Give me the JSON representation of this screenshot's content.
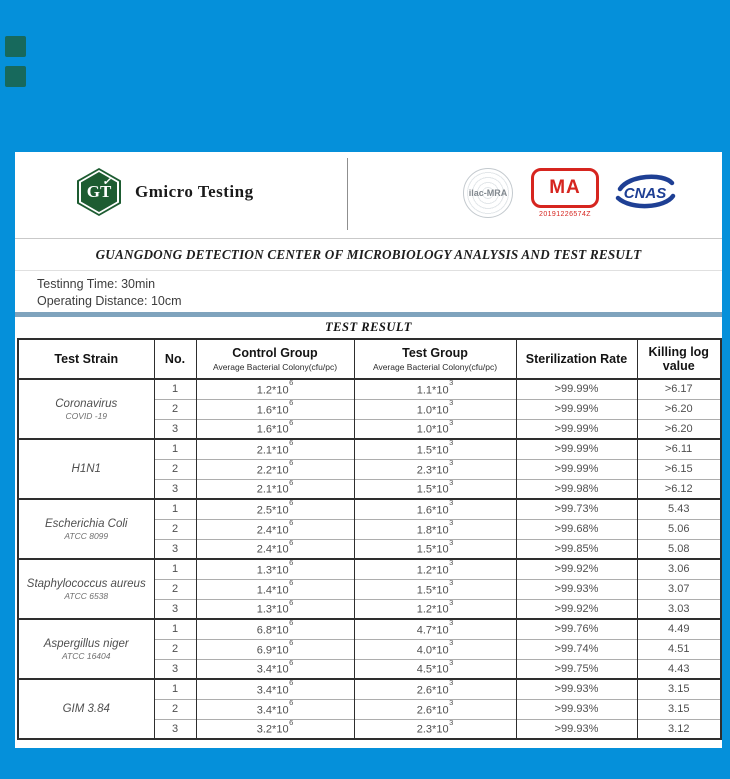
{
  "colors": {
    "background_blue": "#0590da",
    "logo_green": "#1d5c31",
    "cma_red": "#d6251f",
    "cnas_navy": "#1e3f94",
    "floating_square_teal": "#17695c"
  },
  "header": {
    "logo_text": "GT",
    "company_name": "Gmicro Testing",
    "marks": {
      "ilac_label": "ilac-MRA",
      "cma_label": "MA",
      "cma_number": "20191226574Z",
      "cnas_label": "CNAS"
    }
  },
  "title": "GUANGDONG DETECTION CENTER OF MICROBIOLOGY ANALYSIS AND TEST RESULT",
  "info": {
    "testing_time": "Testinng Time: 30min",
    "operating_distance": "Operating Distance: 10cm"
  },
  "table": {
    "caption": "TEST RESULT",
    "columns": [
      "Test Strain",
      "No.",
      "Control Group",
      "Test Group",
      "Sterilization Rate",
      "Killing log value"
    ],
    "subheader": "Average Bacterial Colony(cfu/pc)",
    "groups": [
      {
        "strain": "Coronavirus",
        "strain_sub": "COVID -19",
        "rows": [
          {
            "no": "1",
            "control": "1.2*10^6",
            "test": "1.1*10^3",
            "rate": ">99.99%",
            "log": ">6.17"
          },
          {
            "no": "2",
            "control": "1.6*10^6",
            "test": "1.0*10^3",
            "rate": ">99.99%",
            "log": ">6.20"
          },
          {
            "no": "3",
            "control": "1.6*10^6",
            "test": "1.0*10^3",
            "rate": ">99.99%",
            "log": ">6.20"
          }
        ]
      },
      {
        "strain": "H1N1",
        "strain_sub": null,
        "rows": [
          {
            "no": "1",
            "control": "2.1*10^6",
            "test": "1.5*10^3",
            "rate": ">99.99%",
            "log": ">6.11"
          },
          {
            "no": "2",
            "control": "2.2*10^6",
            "test": "2.3*10^3",
            "rate": ">99.99%",
            "log": ">6.15"
          },
          {
            "no": "3",
            "control": "2.1*10^6",
            "test": "1.5*10^3",
            "rate": ">99.98%",
            "log": ">6.12"
          }
        ]
      },
      {
        "strain": "Escherichia Coli",
        "strain_sub": "ATCC 8099",
        "rows": [
          {
            "no": "1",
            "control": "2.5*10^6",
            "test": "1.6*10^3",
            "rate": ">99.73%",
            "log": "5.43"
          },
          {
            "no": "2",
            "control": "2.4*10^6",
            "test": "1.8*10^3",
            "rate": ">99.68%",
            "log": "5.06"
          },
          {
            "no": "3",
            "control": "2.4*10^6",
            "test": "1.5*10^3",
            "rate": ">99.85%",
            "log": "5.08"
          }
        ]
      },
      {
        "strain": "Staphylococcus aureus",
        "strain_sub": "ATCC 6538",
        "rows": [
          {
            "no": "1",
            "control": "1.3*10^6",
            "test": "1.2*10^3",
            "rate": ">99.92%",
            "log": "3.06"
          },
          {
            "no": "2",
            "control": "1.4*10^6",
            "test": "1.5*10^3",
            "rate": ">99.93%",
            "log": "3.07"
          },
          {
            "no": "3",
            "control": "1.3*10^6",
            "test": "1.2*10^3",
            "rate": ">99.92%",
            "log": "3.03"
          }
        ]
      },
      {
        "strain": "Aspergillus niger",
        "strain_sub": "ATCC 16404",
        "rows": [
          {
            "no": "1",
            "control": "6.8*10^6",
            "test": "4.7*10^3",
            "rate": ">99.76%",
            "log": "4.49"
          },
          {
            "no": "2",
            "control": "6.9*10^6",
            "test": "4.0*10^3",
            "rate": ">99.74%",
            "log": "4.51"
          },
          {
            "no": "3",
            "control": "3.4*10^6",
            "test": "4.5*10^3",
            "rate": ">99.75%",
            "log": "4.43"
          }
        ]
      },
      {
        "strain": "GIM 3.84",
        "strain_sub": null,
        "rows": [
          {
            "no": "1",
            "control": "3.4*10^6",
            "test": "2.6*10^3",
            "rate": ">99.93%",
            "log": "3.15"
          },
          {
            "no": "2",
            "control": "3.4*10^6",
            "test": "2.6*10^3",
            "rate": ">99.93%",
            "log": "3.15"
          },
          {
            "no": "3",
            "control": "3.2*10^6",
            "test": "2.3*10^3",
            "rate": ">99.93%",
            "log": "3.12"
          }
        ]
      }
    ]
  }
}
